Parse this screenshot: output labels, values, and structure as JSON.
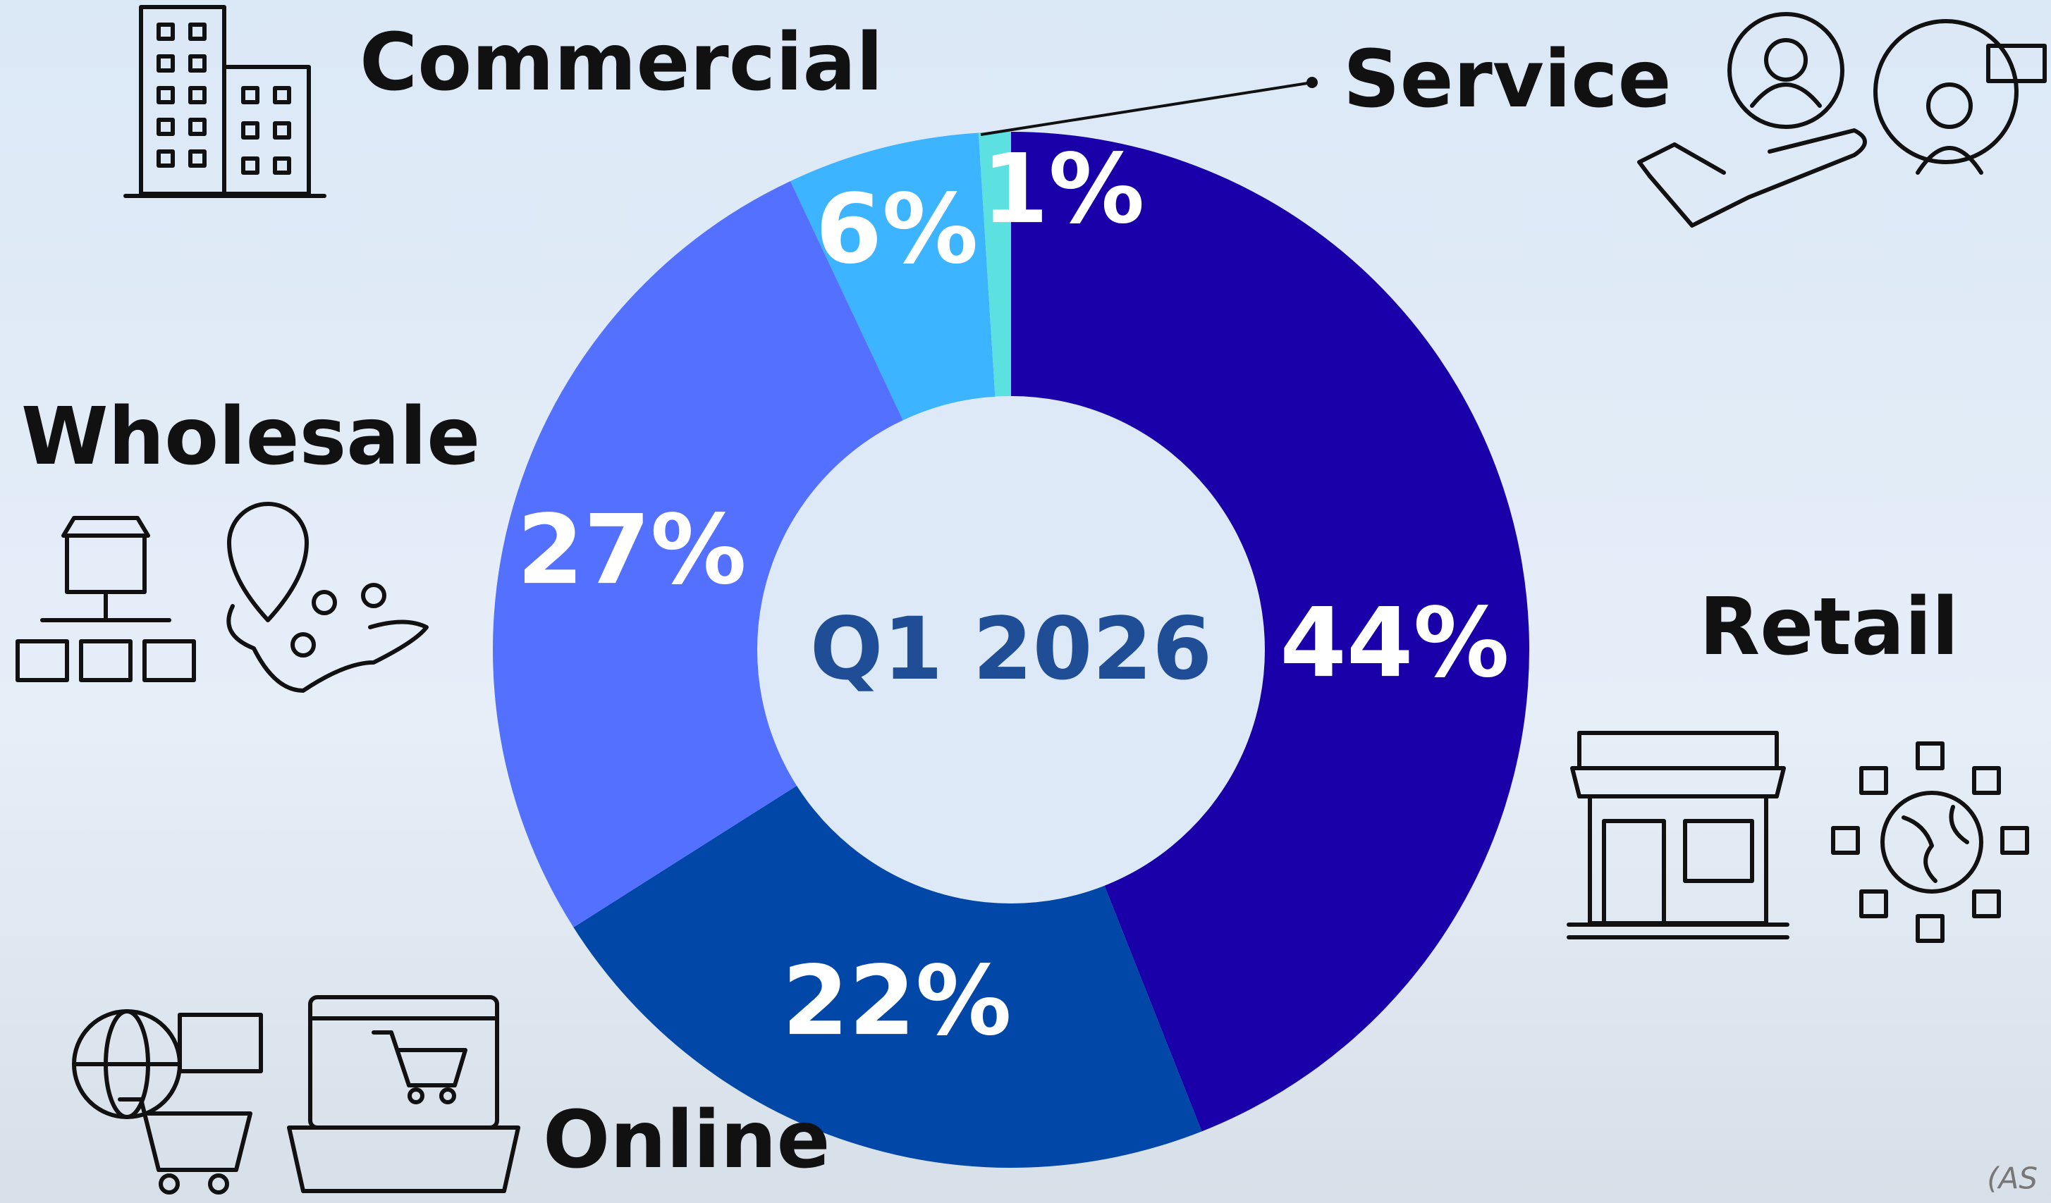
{
  "chart_data": {
    "type": "donut",
    "center_label": "Q1 2026",
    "categories": [
      "Retail",
      "Online",
      "Wholesale",
      "Commercial",
      "Service"
    ],
    "values": [
      44,
      22,
      27,
      6,
      1
    ],
    "value_labels": [
      "44%",
      "22%",
      "27%",
      "6%",
      "1%"
    ],
    "colors": [
      "#1a00a8",
      "#0047a8",
      "#5470ff",
      "#3cb4ff",
      "#5ce0e0"
    ],
    "footnote": "(AS"
  }
}
